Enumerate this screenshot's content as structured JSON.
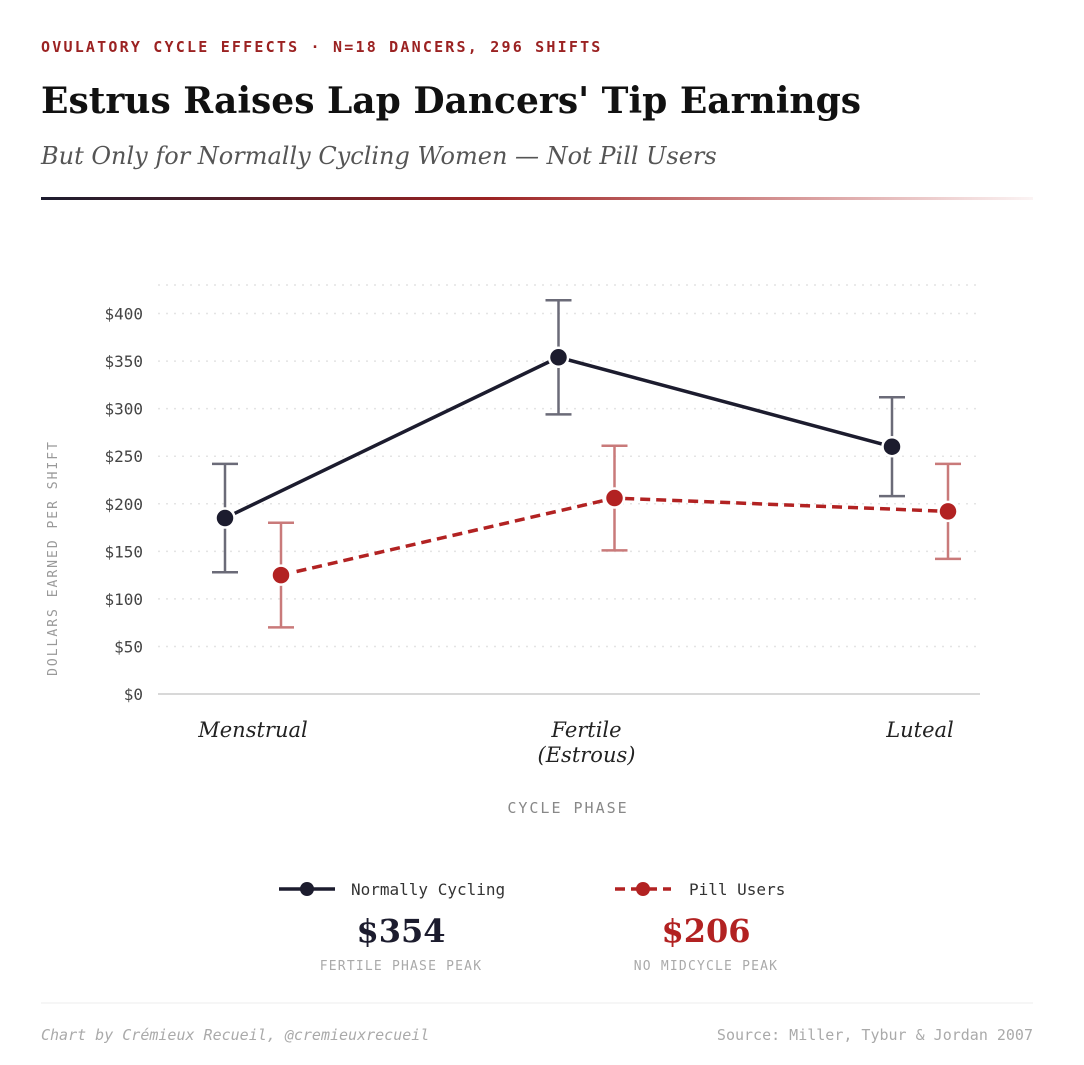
{
  "chart_data": {
    "type": "line",
    "kicker": "OVULATORY CYCLE EFFECTS · N=18 DANCERS, 296 SHIFTS",
    "title": "Estrus Raises Lap Dancers' Tip Earnings",
    "subtitle": "But Only for Normally Cycling Women — Not Pill Users",
    "y_label": "DOLLARS EARNED PER SHIFT",
    "x_label": "CYCLE PHASE",
    "categories": [
      "Menstrual",
      "Fertile\n(Estrous)",
      "Luteal"
    ],
    "series": [
      {
        "name": "Normally Cycling",
        "color": "#1c1c2e",
        "values": [
          185,
          354,
          260
        ],
        "errors": [
          57,
          60,
          52
        ],
        "dashed": false
      },
      {
        "name": "Pill Users",
        "color": "#b22222",
        "values": [
          125,
          206,
          192
        ],
        "errors": [
          55,
          55,
          50
        ],
        "dashed": true
      }
    ],
    "ylim": [
      0,
      430
    ],
    "yticks": [
      {
        "value": 0,
        "label": "$0"
      },
      {
        "value": 50,
        "label": "$50"
      },
      {
        "value": 100,
        "label": "$100"
      },
      {
        "value": 150,
        "label": "$150"
      },
      {
        "value": 200,
        "label": "$200"
      },
      {
        "value": 250,
        "label": "$250"
      },
      {
        "value": 300,
        "label": "$300"
      },
      {
        "value": 350,
        "label": "$350"
      },
      {
        "value": 400,
        "label": "$400"
      }
    ],
    "grid": true,
    "annotations": [
      {
        "text": "$354",
        "caption": "FERTILE PHASE PEAK"
      },
      {
        "text": "$206",
        "caption": "NO MIDCYCLE PEAK"
      }
    ],
    "credit": "Chart by Crémieux Recueil, @cremieuxrecueil",
    "source": "Source: Miller, Tybur & Jordan 2007"
  }
}
